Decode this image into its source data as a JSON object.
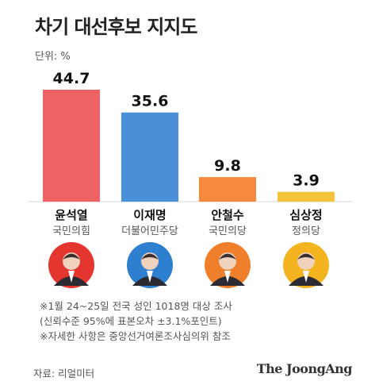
{
  "title": "차기 대선후보 지지도",
  "unit_label": "단위: %",
  "chart_data": {
    "type": "bar",
    "title": "차기 대선후보 지지도",
    "unit": "%",
    "categories": [
      "윤석열",
      "이재명",
      "안철수",
      "심상정"
    ],
    "values": [
      44.7,
      35.6,
      9.8,
      3.9
    ],
    "value_labels": [
      "44.7",
      "35.6",
      "9.8",
      "3.9"
    ],
    "parties": [
      "국민의힘",
      "더불어민주당",
      "국민의당",
      "정의당"
    ],
    "bar_colors": [
      "#EF6264",
      "#4A90D8",
      "#F58A3E",
      "#F5C33B"
    ],
    "avatar_colors": [
      "#E4352E",
      "#2F7FD1",
      "#F07F2C",
      "#F3B41F"
    ],
    "ylim": [
      0,
      44.7
    ]
  },
  "notes": [
    "※1월 24~25일 전국 성인 1018명 대상 조사",
    "(신뢰수준 95%에 표본오차 ±3.1%포인트)",
    "※자세한 사항은 중앙선거여론조사심의위 참조"
  ],
  "source": "자료: 리얼미터",
  "brand": "The JoongAng"
}
